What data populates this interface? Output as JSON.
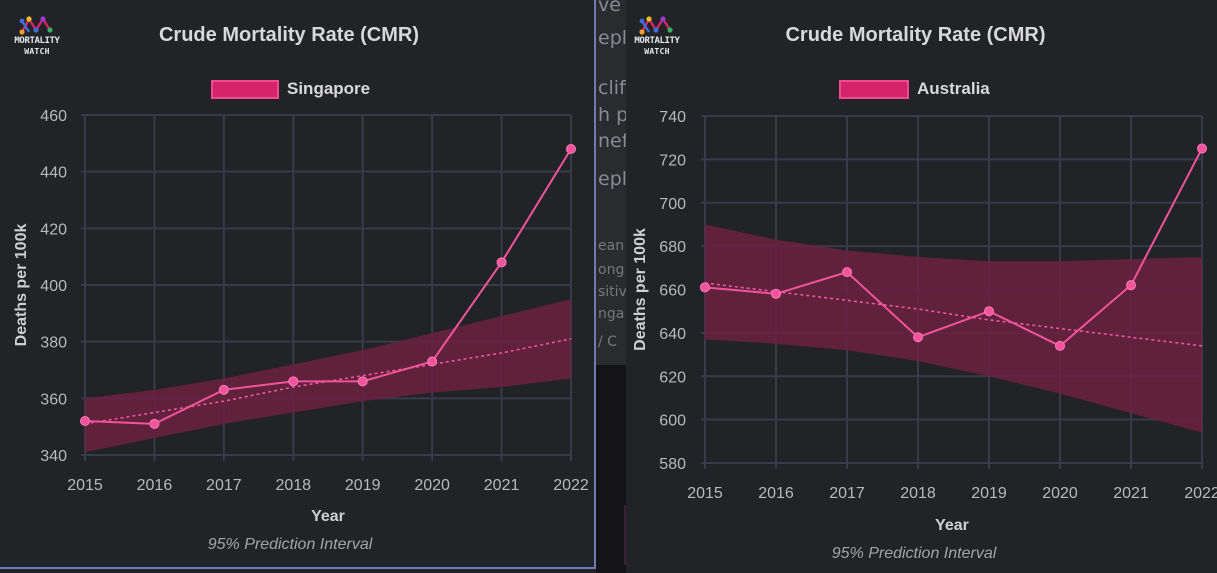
{
  "background_text": {
    "frag1": "ve c",
    "frag2": "epl",
    "frag3": "cliff",
    "frag4": "h p",
    "frag5": "nef",
    "frag6": "eply",
    "frag7": "ean",
    "frag8": "ong",
    "frag9": "sitiv",
    "frag10": "nga",
    "frag11": "/ C"
  },
  "logo": {
    "line1": "MORTALITY",
    "line2": "WATCH"
  },
  "colors": {
    "series": "#f0549b",
    "band": "#6b2140",
    "grid": "#393a4c",
    "background": "#222327"
  },
  "chart_data": [
    {
      "type": "line",
      "title": "Crude Mortality Rate (CMR)",
      "legend": "Singapore",
      "legend_position": "top-center",
      "xlabel": "Year",
      "ylabel": "Deaths per 100k",
      "footnote": "95% Prediction Interval",
      "x": [
        "2015",
        "2016",
        "2017",
        "2018",
        "2019",
        "2020",
        "2021",
        "2022"
      ],
      "yticks": [
        340,
        360,
        380,
        400,
        420,
        440,
        460
      ],
      "ylim": [
        340,
        460
      ],
      "grid": true,
      "series": [
        {
          "name": "Singapore",
          "values": [
            352,
            351,
            363,
            366,
            366,
            373,
            408,
            448
          ]
        }
      ],
      "trend": [
        351,
        355,
        359,
        364,
        368,
        372,
        376,
        381
      ],
      "interval_upper": [
        360,
        363,
        367,
        372,
        377,
        383,
        389,
        395
      ],
      "interval_lower": [
        341,
        346,
        351,
        355,
        359,
        362,
        364,
        367
      ]
    },
    {
      "type": "line",
      "title": "Crude Mortality Rate (CMR)",
      "legend": "Australia",
      "legend_position": "top-center",
      "xlabel": "Year",
      "ylabel": "Deaths per 100k",
      "footnote": "95% Prediction Interval",
      "x": [
        "2015",
        "2016",
        "2017",
        "2018",
        "2019",
        "2020",
        "2021",
        "2022"
      ],
      "yticks": [
        580,
        600,
        620,
        640,
        660,
        680,
        700,
        720,
        740
      ],
      "ylim": [
        580,
        740
      ],
      "grid": true,
      "series": [
        {
          "name": "Australia",
          "values": [
            661,
            658,
            668,
            638,
            650,
            634,
            662,
            725
          ]
        }
      ],
      "trend": [
        663,
        659,
        655,
        651,
        646,
        642,
        638,
        634
      ],
      "interval_upper": [
        690,
        683,
        678,
        675,
        673,
        673,
        674,
        675
      ],
      "interval_lower": [
        637,
        635,
        632,
        627,
        620,
        612,
        603,
        594
      ]
    }
  ]
}
